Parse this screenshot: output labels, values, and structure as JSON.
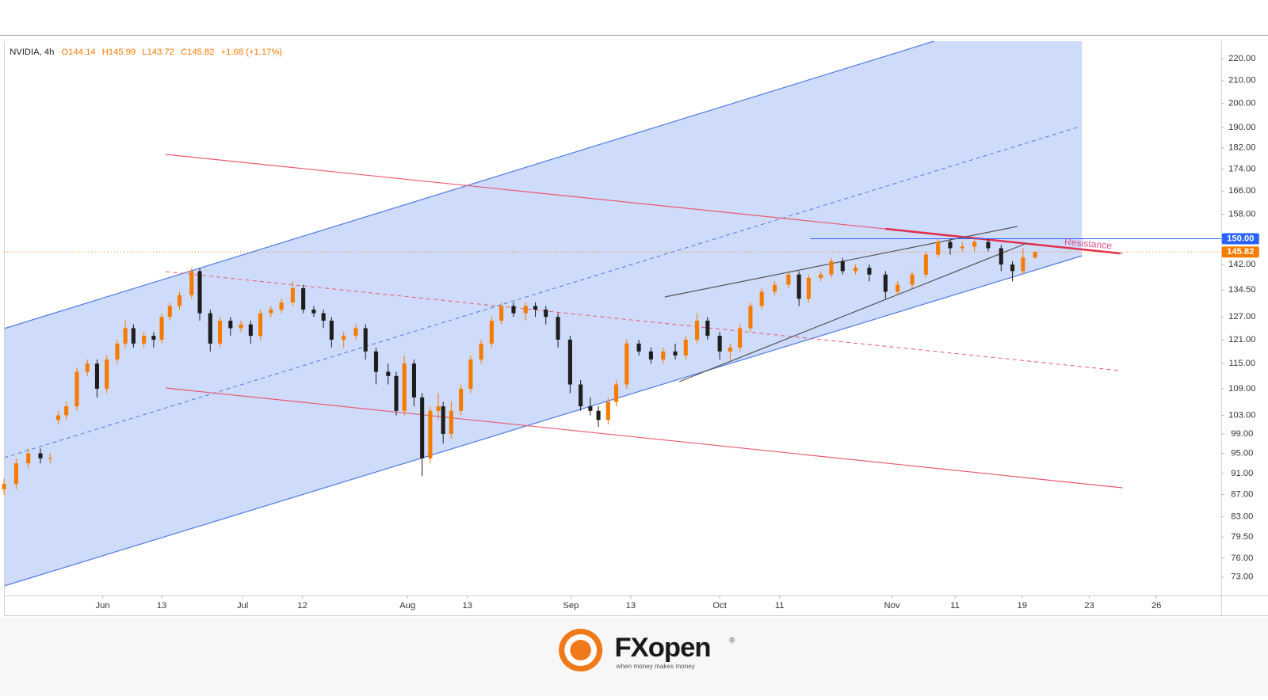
{
  "chart_data": {
    "type": "candlestick",
    "legend": {
      "symbol": "NVIDIA, 4h",
      "fields": [
        "O144.14",
        "H145.99",
        "L143.72",
        "C145.82",
        "+1.68 (+1.17%)"
      ]
    },
    "annotation": "Resistance",
    "log_scale": true,
    "up_color": "#f57c00",
    "down_color": "#1e1e1e",
    "xlim": [
      0,
      301
    ],
    "xticks": [
      {
        "value": 24.4,
        "label": "Jun"
      },
      {
        "value": 39,
        "label": "13"
      },
      {
        "value": 59,
        "label": "Jul"
      },
      {
        "value": 73.8,
        "label": "12"
      },
      {
        "value": 99.8,
        "label": "Aug"
      },
      {
        "value": 114.6,
        "label": "13"
      },
      {
        "value": 140.2,
        "label": "Sep"
      },
      {
        "value": 155,
        "label": "13"
      },
      {
        "value": 177,
        "label": "Oct"
      },
      {
        "value": 191.8,
        "label": "11"
      },
      {
        "value": 219.6,
        "label": "Nov"
      },
      {
        "value": 235.2,
        "label": "11"
      },
      {
        "value": 251.8,
        "label": "19"
      },
      {
        "value": 268.4,
        "label": "23"
      },
      {
        "value": 285,
        "label": "26"
      }
    ],
    "ylim": [
      70.2,
      228.4
    ],
    "yticks": [
      {
        "value": 220,
        "label": "220.00"
      },
      {
        "value": 210,
        "label": "210.00"
      },
      {
        "value": 200,
        "label": "200.00"
      },
      {
        "value": 190,
        "label": "190.00"
      },
      {
        "value": 182,
        "label": "182.00"
      },
      {
        "value": 174,
        "label": "174.00"
      },
      {
        "value": 166,
        "label": "166.00"
      },
      {
        "value": 158,
        "label": "158.00"
      },
      {
        "value": 142,
        "label": "142.00"
      },
      {
        "value": 134.5,
        "label": "134.50"
      },
      {
        "value": 127,
        "label": "127.00"
      },
      {
        "value": 121,
        "label": "121.00"
      },
      {
        "value": 115,
        "label": "115.00"
      },
      {
        "value": 109,
        "label": "109.00"
      },
      {
        "value": 103,
        "label": "103.00"
      },
      {
        "value": 99,
        "label": "99.00"
      },
      {
        "value": 95,
        "label": "95.00"
      },
      {
        "value": 91,
        "label": "91.00"
      },
      {
        "value": 87,
        "label": "87.00"
      },
      {
        "value": 83,
        "label": "83.00"
      },
      {
        "value": 79.5,
        "label": "79.50"
      },
      {
        "value": 76,
        "label": "76.00"
      },
      {
        "value": 73,
        "label": "73.00"
      }
    ],
    "levels": [
      {
        "value": 150,
        "label": "150.00",
        "color": "#2962ff"
      },
      {
        "value": 145.82,
        "label": "145.82",
        "color": "#f57c00"
      }
    ],
    "x": [
      0,
      3,
      6,
      9,
      11.4,
      13.4,
      15.4,
      18,
      20.6,
      23,
      25.4,
      28,
      30,
      32,
      34.6,
      37,
      39,
      41,
      43.4,
      46.4,
      48.4,
      51,
      53.4,
      56,
      58.6,
      61,
      63.4,
      66,
      68.6,
      71.4,
      74,
      76.6,
      79,
      81,
      84,
      87,
      89.4,
      92,
      95,
      97,
      99,
      101.4,
      103.4,
      105.4,
      107.4,
      108.6,
      110.6,
      113,
      115.4,
      118,
      120.6,
      123,
      126,
      129,
      131.4,
      134,
      137,
      140,
      142.6,
      145,
      147,
      149.4,
      151.4,
      154,
      157,
      160,
      163,
      166,
      168.6,
      171.4,
      174,
      177,
      179.6,
      182,
      184.6,
      187.4,
      190.6,
      194,
      196.6,
      199,
      202,
      204.6,
      207.4,
      210.6,
      214,
      218,
      221,
      224.6,
      228,
      231,
      234,
      237,
      240,
      243.4,
      246.6,
      249.4,
      252,
      255
    ],
    "open": [
      88,
      89,
      93,
      95,
      94,
      102,
      103,
      105,
      113,
      115,
      109,
      116,
      120,
      124,
      120,
      122,
      121,
      127,
      130,
      133,
      140,
      128,
      120,
      126,
      124,
      125,
      122,
      128,
      129,
      131,
      135,
      129,
      128,
      126,
      121,
      122,
      124,
      118,
      113,
      112,
      104,
      115,
      107,
      94,
      104,
      105,
      99,
      104,
      109,
      116,
      120,
      126,
      130,
      128,
      130,
      129,
      127,
      121,
      110,
      105,
      104,
      102,
      106,
      110,
      120,
      118,
      116,
      118,
      117,
      121,
      126,
      122,
      118,
      119,
      124,
      130,
      134,
      136,
      139,
      132,
      138,
      139,
      143,
      140,
      141,
      139,
      134,
      136,
      139,
      145,
      149,
      147,
      147.5,
      149,
      147,
      142,
      140,
      144.14
    ],
    "high": [
      90,
      94,
      96,
      96,
      95,
      104,
      106,
      114,
      116,
      116,
      117,
      121,
      126,
      125,
      123,
      123,
      128,
      131,
      134,
      141,
      141,
      129,
      127,
      127,
      126,
      126,
      129,
      130,
      132,
      137,
      136,
      130,
      129,
      127,
      123,
      125,
      125,
      119,
      115,
      113,
      117,
      116,
      108,
      105,
      108,
      106,
      106,
      110,
      117,
      121,
      127,
      131,
      131,
      131,
      131,
      130,
      128,
      122,
      111,
      107,
      105,
      107,
      111,
      121,
      121,
      119,
      119,
      120,
      122,
      128,
      127,
      123,
      120,
      125,
      131,
      135,
      137,
      140,
      140,
      139,
      140,
      144,
      144,
      142,
      142,
      140,
      137,
      140,
      146,
      150,
      150,
      149,
      150,
      150,
      148,
      143,
      147,
      145.99
    ],
    "low": [
      87,
      88,
      92,
      93,
      93,
      101,
      102,
      104,
      112,
      107,
      108,
      115,
      119,
      119,
      119,
      119,
      120,
      126,
      129,
      132,
      126,
      118,
      119,
      122,
      123,
      120,
      121,
      127,
      128,
      130,
      128,
      127,
      124,
      119,
      119,
      121,
      116,
      110,
      110,
      103,
      103,
      105,
      90.5,
      93,
      102,
      97,
      98,
      103,
      108,
      115,
      119,
      125,
      127,
      126,
      127,
      125,
      119,
      108,
      104,
      103,
      100.5,
      101,
      105,
      109,
      117,
      115,
      115,
      116,
      116,
      120,
      121,
      116,
      116,
      118,
      123,
      129,
      133,
      135,
      130,
      131,
      137,
      138,
      139,
      139,
      137,
      132,
      133,
      135,
      138,
      144,
      145,
      146,
      146,
      146,
      140,
      137,
      139,
      143.72
    ],
    "close": [
      89,
      93,
      95,
      94,
      94,
      103,
      105,
      113,
      115,
      109,
      116,
      120,
      124,
      120,
      122,
      121,
      127,
      130,
      133,
      140,
      128,
      120,
      126,
      124,
      125,
      122,
      128,
      129,
      131,
      135,
      129,
      128,
      126,
      121,
      122,
      124,
      118,
      113,
      112,
      104,
      115,
      107,
      94,
      104,
      105,
      99,
      104,
      109,
      116,
      120,
      126,
      130,
      128,
      130,
      129,
      127,
      121,
      110,
      105,
      104,
      102,
      106,
      110,
      120,
      118,
      116,
      118,
      117,
      121,
      126,
      122,
      118,
      119,
      124,
      130,
      134,
      136,
      139,
      132,
      138,
      139,
      143,
      140,
      141,
      139,
      134,
      136,
      139,
      145,
      149,
      147,
      147.5,
      149,
      147,
      142,
      140,
      144.14,
      145.82
    ]
  },
  "footer": {
    "brand": "FXopen",
    "mark": "®",
    "tagline": "when money makes money"
  }
}
